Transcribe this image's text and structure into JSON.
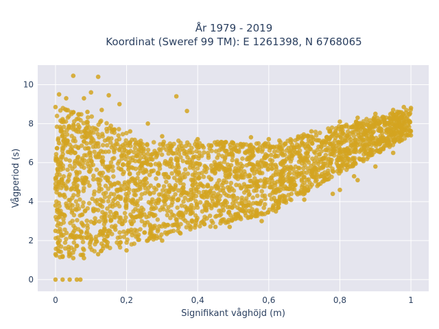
{
  "chart_data": {
    "type": "scatter",
    "title_line1": "År 1979 - 2019",
    "title_line2": "Koordinat (Sweref 99 TM): E 1261398, N 6768065",
    "xlabel": "Signifikant våghöjd (m)",
    "ylabel": "Vågperiod (s)",
    "xlim": [
      -0.05,
      1.05
    ],
    "ylim": [
      -0.6,
      11.0
    ],
    "x_ticks": [
      0,
      0.2,
      0.4,
      0.6,
      0.8,
      1
    ],
    "x_tick_labels": [
      "0",
      "0,2",
      "0,4",
      "0,6",
      "0,8",
      "1"
    ],
    "y_ticks": [
      0,
      2,
      4,
      6,
      8,
      10
    ],
    "y_tick_labels": [
      "0",
      "2",
      "4",
      "6",
      "8",
      "10"
    ],
    "grid": true,
    "marker_color": "#d4a420",
    "plot_background": "#e5e5ee",
    "series": [
      {
        "values_note_free": true,
        "points": [
          [
            0.0,
            0.0
          ],
          [
            0.02,
            0.0
          ],
          [
            0.04,
            0.0
          ],
          [
            0.06,
            0.0
          ],
          [
            0.07,
            0.0
          ],
          [
            0.05,
            10.45
          ],
          [
            0.12,
            10.4
          ],
          [
            0.1,
            9.6
          ],
          [
            0.01,
            9.5
          ],
          [
            0.03,
            9.3
          ],
          [
            0.08,
            9.3
          ],
          [
            0.15,
            9.45
          ],
          [
            0.34,
            9.4
          ],
          [
            0.18,
            9.0
          ],
          [
            0.09,
            8.6
          ],
          [
            0.13,
            8.7
          ],
          [
            0.37,
            8.65
          ],
          [
            0.0,
            8.85
          ],
          [
            0.02,
            7.4
          ],
          [
            0.01,
            7.0
          ],
          [
            0.26,
            8.0
          ],
          [
            0.21,
            7.6
          ],
          [
            0.3,
            7.35
          ],
          [
            0.4,
            7.2
          ],
          [
            0.5,
            7.0
          ],
          [
            0.55,
            7.3
          ],
          [
            0.6,
            7.2
          ],
          [
            0.7,
            7.35
          ],
          [
            0.72,
            7.6
          ],
          [
            0.8,
            8.1
          ],
          [
            0.85,
            8.3
          ],
          [
            0.9,
            8.5
          ],
          [
            0.95,
            8.7
          ],
          [
            0.98,
            8.85
          ],
          [
            1.0,
            8.8
          ],
          [
            0.0,
            1.3
          ],
          [
            0.02,
            1.2
          ],
          [
            0.05,
            1.1
          ],
          [
            0.08,
            1.1
          ],
          [
            0.12,
            1.3
          ],
          [
            0.2,
            1.5
          ],
          [
            0.3,
            2.0
          ],
          [
            0.35,
            2.4
          ],
          [
            0.45,
            2.7
          ],
          [
            0.55,
            3.2
          ],
          [
            0.62,
            3.5
          ],
          [
            0.7,
            4.1
          ],
          [
            0.8,
            4.6
          ],
          [
            0.85,
            5.1
          ],
          [
            0.9,
            5.8
          ],
          [
            0.95,
            6.5
          ],
          [
            1.0,
            7.4
          ],
          [
            0.0,
            2.5
          ],
          [
            0.0,
            3.8
          ],
          [
            0.0,
            5.2
          ],
          [
            0.49,
            2.7
          ],
          [
            0.58,
            3.0
          ],
          [
            0.78,
            4.4
          ],
          [
            0.84,
            5.3
          ],
          [
            0.97,
            7.9
          ]
        ]
      }
    ]
  }
}
